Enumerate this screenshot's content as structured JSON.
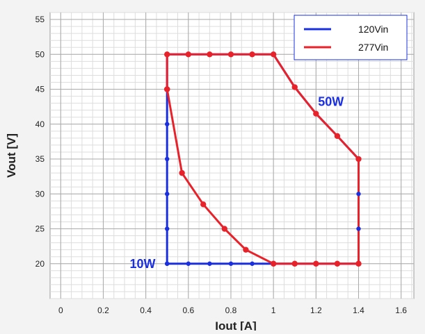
{
  "chart_data": {
    "type": "line",
    "title": "",
    "xlabel": "Iout [A]",
    "ylabel": "Vout [V]",
    "xlim": [
      -0.05,
      1.66
    ],
    "ylim": [
      15,
      56
    ],
    "grid": true,
    "x_ticks": [
      0,
      0.2,
      0.4,
      0.6,
      0.8,
      1,
      1.2,
      1.4,
      1.6
    ],
    "x_tick_labels": [
      "0",
      "0.2",
      "0.4",
      "0.6",
      "0.8",
      "1",
      "1.2",
      "1.4",
      "1.6"
    ],
    "y_ticks": [
      20,
      25,
      30,
      35,
      40,
      45,
      50,
      55
    ],
    "y_tick_labels": [
      "20",
      "25",
      "30",
      "35",
      "40",
      "45",
      "50",
      "55"
    ],
    "legend_position": "top-right",
    "series": [
      {
        "name": "120Vin",
        "color": "#1a2fe0",
        "x": [
          0.5,
          0.5,
          0.5,
          0.5,
          0.5,
          0.5,
          0.5,
          0.6,
          0.7,
          0.8,
          0.9,
          1.0,
          1.1,
          1.2,
          1.3,
          1.4,
          1.4,
          1.4,
          1.4,
          1.3,
          1.2,
          1.1,
          1.0,
          0.9,
          0.8,
          0.7,
          0.6,
          0.5
        ],
        "y": [
          20,
          25,
          30,
          35,
          40,
          45,
          50,
          50,
          50,
          50,
          50,
          50,
          45.3,
          41.5,
          38.3,
          35,
          30,
          25,
          20,
          20,
          20,
          20,
          20,
          20,
          20,
          20,
          20,
          20
        ]
      },
      {
        "name": "277Vin",
        "color": "#e8222a",
        "x": [
          0.5,
          0.5,
          0.6,
          0.7,
          0.8,
          0.9,
          1.0,
          1.1,
          1.2,
          1.3,
          1.4,
          1.4,
          1.3,
          1.2,
          1.1,
          1.0,
          0.87,
          0.77,
          0.67,
          0.57,
          0.5
        ],
        "y": [
          45,
          50,
          50,
          50,
          50,
          50,
          50,
          45.3,
          41.5,
          38.3,
          35,
          20,
          20,
          20,
          20,
          20,
          22,
          25,
          28.5,
          33,
          45
        ]
      }
    ],
    "annotations": [
      {
        "text": "50W",
        "x": 1.27,
        "y": 43.2,
        "color": "#1a2fe0"
      },
      {
        "text": "10W",
        "x": 0.385,
        "y": 20,
        "color": "#1a2fe0"
      }
    ]
  }
}
